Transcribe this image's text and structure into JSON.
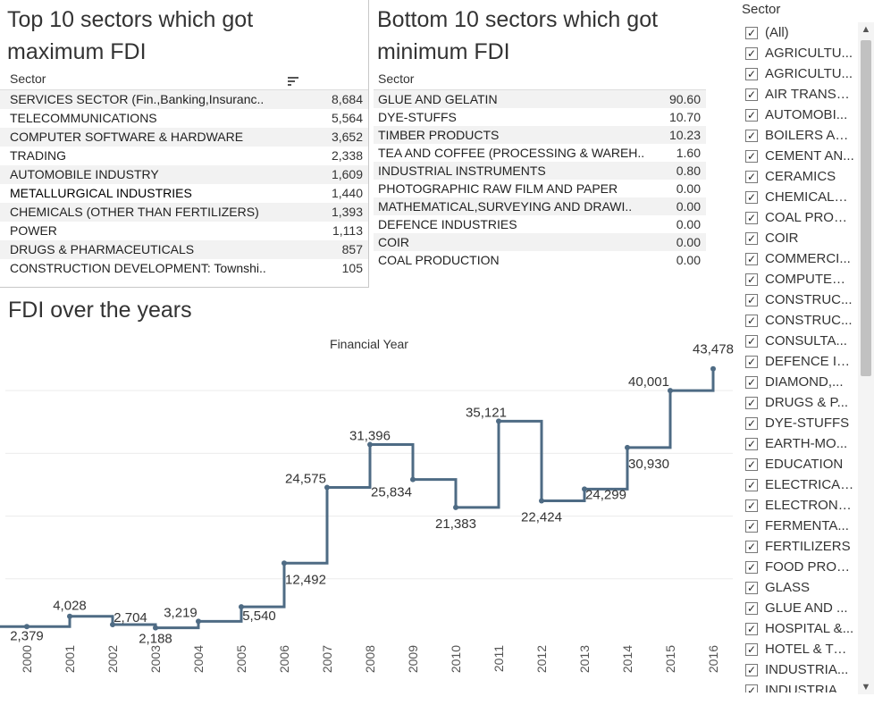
{
  "top10": {
    "title_line1": "Top 10 sectors which got",
    "title_line2": "maximum FDI",
    "header": "Sector",
    "rows": [
      {
        "sector": "SERVICES SECTOR (Fin.,Banking,Insuranc..",
        "value": "8,684"
      },
      {
        "sector": "TELECOMMUNICATIONS",
        "value": "5,564"
      },
      {
        "sector": "COMPUTER SOFTWARE & HARDWARE",
        "value": "3,652"
      },
      {
        "sector": "TRADING",
        "value": "2,338"
      },
      {
        "sector": "AUTOMOBILE INDUSTRY",
        "value": "1,609"
      },
      {
        "sector": "METALLURGICAL INDUSTRIES",
        "value": "1,440"
      },
      {
        "sector": "CHEMICALS (OTHER THAN FERTILIZERS)",
        "value": "1,393"
      },
      {
        "sector": "POWER",
        "value": "1,113"
      },
      {
        "sector": "DRUGS & PHARMACEUTICALS",
        "value": "857"
      },
      {
        "sector": "CONSTRUCTION DEVELOPMENT: Townshi..",
        "value": "105"
      }
    ]
  },
  "bottom10": {
    "title_line1": "Bottom 10 sectors which got",
    "title_line2": "minimum  FDI",
    "header": "Sector",
    "rows": [
      {
        "sector": "GLUE AND GELATIN",
        "value": "90.60"
      },
      {
        "sector": "DYE-STUFFS",
        "value": "10.70"
      },
      {
        "sector": "TIMBER PRODUCTS",
        "value": "10.23"
      },
      {
        "sector": "TEA AND COFFEE (PROCESSING & WAREH..",
        "value": "1.60"
      },
      {
        "sector": "INDUSTRIAL INSTRUMENTS",
        "value": "0.80"
      },
      {
        "sector": "PHOTOGRAPHIC RAW FILM AND PAPER",
        "value": "0.00"
      },
      {
        "sector": "MATHEMATICAL,SURVEYING AND DRAWI..",
        "value": "0.00"
      },
      {
        "sector": "DEFENCE INDUSTRIES",
        "value": "0.00"
      },
      {
        "sector": "COIR",
        "value": "0.00"
      },
      {
        "sector": "COAL PRODUCTION",
        "value": "0.00"
      }
    ]
  },
  "chart_data": {
    "type": "line",
    "title": "FDI over the years",
    "subtitle": "Financial Year",
    "x": [
      "2000",
      "2001",
      "2002",
      "2003",
      "2004",
      "2005",
      "2006",
      "2007",
      "2008",
      "2009",
      "2010",
      "2011",
      "2012",
      "2013",
      "2014",
      "2015",
      "2016"
    ],
    "values": [
      2379,
      4028,
      2704,
      2188,
      3219,
      5540,
      12492,
      24575,
      31396,
      25834,
      21383,
      35121,
      22424,
      24299,
      30930,
      40001,
      43478
    ],
    "labels": [
      "2,379",
      "4,028",
      "2,704",
      "2,188",
      "3,219",
      "5,540",
      "12,492",
      "24,575",
      "31,396",
      "25,834",
      "21,383",
      "35,121",
      "22,424",
      "24,299",
      "30,930",
      "40,001",
      "43,478"
    ],
    "ylim": [
      0,
      47000
    ],
    "line_style": "step",
    "line_color": "#4e6b84",
    "grid": true
  },
  "filter": {
    "title": "Sector",
    "items": [
      "(All)",
      "AGRICULTU...",
      "AGRICULTU...",
      "AIR TRANSP...",
      "AUTOMOBI...",
      "BOILERS AN...",
      "CEMENT AN...",
      "CERAMICS",
      "CHEMICALS ...",
      "COAL PROD...",
      "COIR",
      "COMMERCI...",
      "COMPUTER ...",
      "CONSTRUC...",
      "CONSTRUC...",
      "CONSULTA...",
      "DEFENCE IN...",
      "DIAMOND,...",
      "DRUGS & P...",
      "DYE-STUFFS",
      "EARTH-MO...",
      "EDUCATION",
      "ELECTRICAL...",
      "ELECTRONICS",
      "FERMENTA...",
      "FERTILIZERS",
      "FOOD PROC...",
      "GLASS",
      "GLUE AND ...",
      "HOSPITAL &...",
      "HOTEL & TO...",
      "INDUSTRIA...",
      "INDUSTRIA..."
    ],
    "checkmark": "✓"
  }
}
